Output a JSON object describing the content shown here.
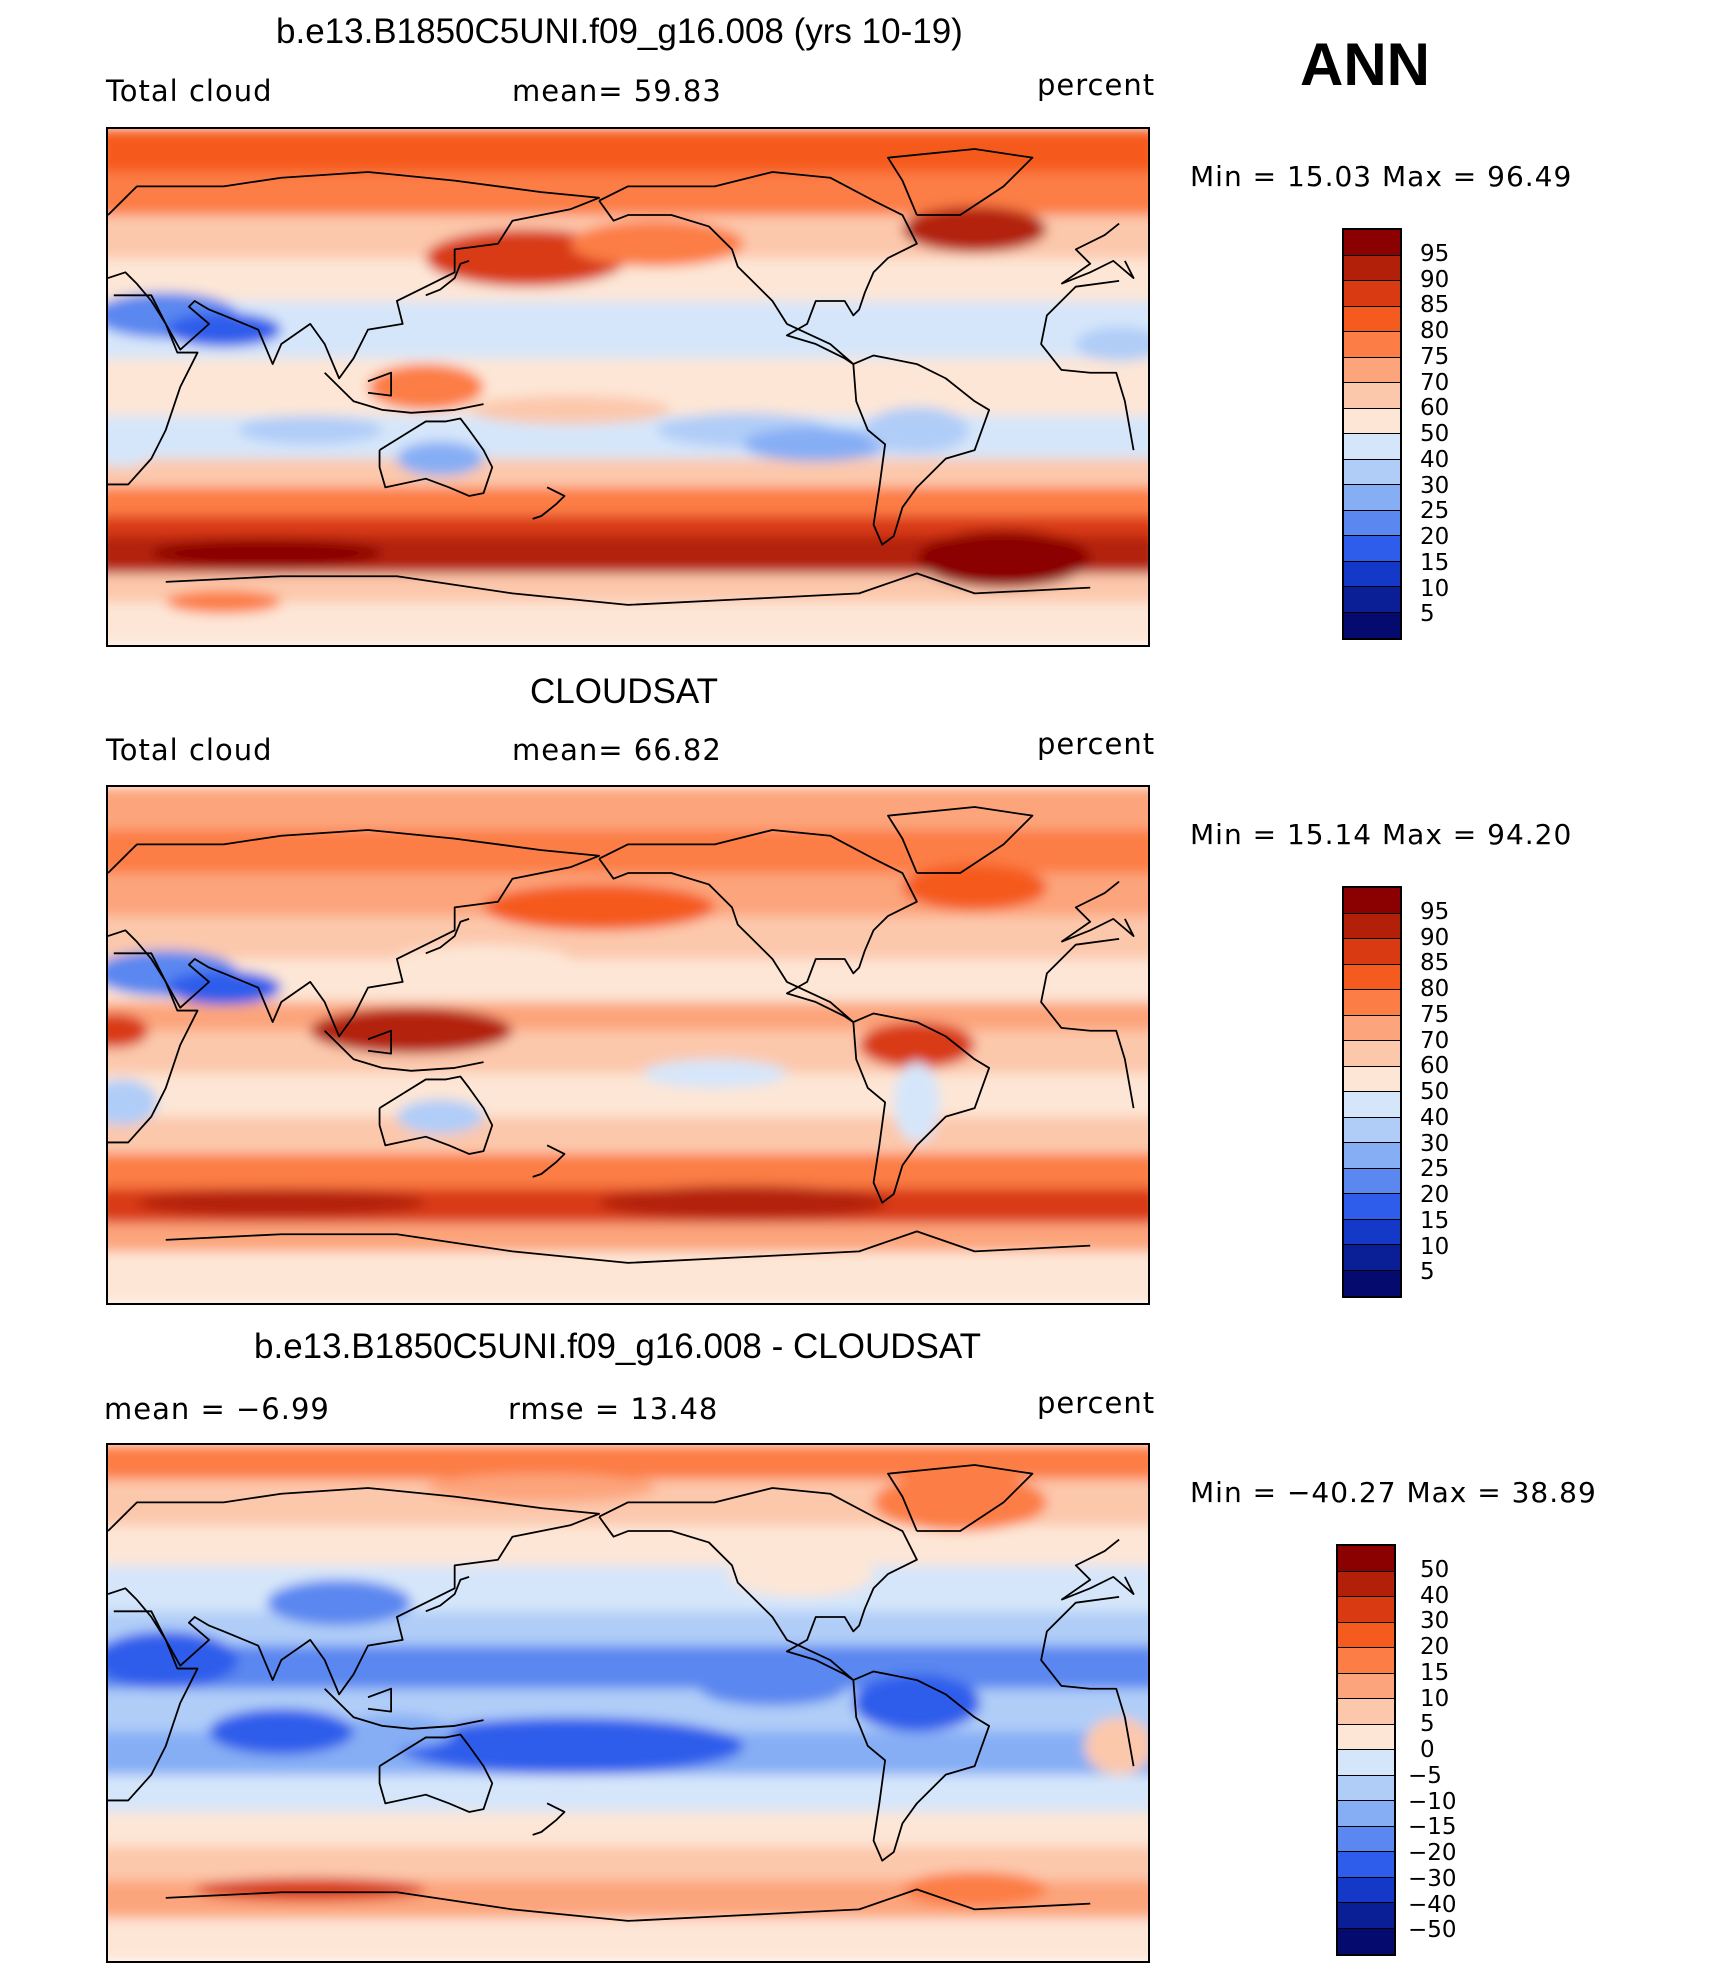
{
  "season": "ANN",
  "panels": [
    {
      "title": "b.e13.B1850C5UNI.f09_g16.008 (yrs 10-19)",
      "left_label": "Total cloud",
      "center_label": "mean=   59.83",
      "right_label": "percent",
      "minmax": "Min =   15.03  Max =    96.49",
      "colorbar_levels": [
        "95",
        "90",
        "85",
        "80",
        "75",
        "70",
        "60",
        "50",
        "40",
        "30",
        "25",
        "20",
        "15",
        "10",
        "5"
      ],
      "colors": [
        "#8b0000",
        "#b3200a",
        "#d93a12",
        "#f55a1e",
        "#fc7d45",
        "#fca47c",
        "#fcc8ac",
        "#fde6d6",
        "#d6e6fa",
        "#b0cdf8",
        "#86aef5",
        "#5a87f0",
        "#2f5deb",
        "#1438c8",
        "#0a1e96",
        "#050a6e"
      ],
      "kind": "model"
    },
    {
      "title": "CLOUDSAT",
      "left_label": "Total cloud",
      "center_label": "mean=   66.82",
      "right_label": "percent",
      "minmax": "Min =   15.14  Max =    94.20",
      "colorbar_levels": [
        "95",
        "90",
        "85",
        "80",
        "75",
        "70",
        "60",
        "50",
        "40",
        "30",
        "25",
        "20",
        "15",
        "10",
        "5"
      ],
      "colors": [
        "#8b0000",
        "#b3200a",
        "#d93a12",
        "#f55a1e",
        "#fc7d45",
        "#fca47c",
        "#fcc8ac",
        "#fde6d6",
        "#d6e6fa",
        "#b0cdf8",
        "#86aef5",
        "#5a87f0",
        "#2f5deb",
        "#1438c8",
        "#0a1e96",
        "#050a6e"
      ],
      "kind": "obs"
    },
    {
      "title": "b.e13.B1850C5UNI.f09_g16.008 - CLOUDSAT",
      "left_label": "mean =   −6.99",
      "center_label": "rmse =   13.48",
      "right_label": "percent",
      "minmax": "Min = −40.27  Max =    38.89",
      "colorbar_levels": [
        "50",
        "40",
        "30",
        "20",
        "15",
        "10",
        "5",
        "0",
        "−5",
        "−10",
        "−15",
        "−20",
        "−30",
        "−40",
        "−50"
      ],
      "colors": [
        "#8b0000",
        "#b3200a",
        "#d93a12",
        "#f55a1e",
        "#fc7d45",
        "#fca47c",
        "#fcc8ac",
        "#fde6d6",
        "#d6e6fa",
        "#b0cdf8",
        "#86aef5",
        "#5a87f0",
        "#2f5deb",
        "#1438c8",
        "#0a1e96",
        "#050a6e"
      ],
      "kind": "diff"
    }
  ]
}
